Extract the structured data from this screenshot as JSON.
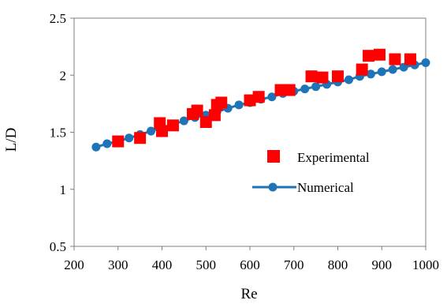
{
  "chart_data": {
    "type": "scatter",
    "xlabel": "Re",
    "ylabel": "L/D",
    "xlim": [
      200,
      1000
    ],
    "ylim": [
      0.5,
      2.5
    ],
    "xticks": [
      200,
      300,
      400,
      500,
      600,
      700,
      800,
      900,
      1000
    ],
    "yticks": [
      0.5,
      1,
      1.5,
      2,
      2.5
    ],
    "x_tick_labels": [
      "200",
      "300",
      "400",
      "500",
      "600",
      "700",
      "800",
      "900",
      "1000"
    ],
    "y_tick_labels": [
      "0.5",
      "1",
      "1.5",
      "2",
      "2.5"
    ],
    "grid": false,
    "legend_position": "right",
    "series": [
      {
        "name": "Experimental",
        "marker": "square",
        "line": false,
        "color": "#ff0000",
        "x": [
          300,
          350,
          395,
          400,
          425,
          470,
          480,
          500,
          520,
          525,
          535,
          600,
          620,
          670,
          690,
          740,
          765,
          800,
          855,
          870,
          895,
          930,
          965
        ],
        "y": [
          1.42,
          1.45,
          1.58,
          1.51,
          1.56,
          1.66,
          1.69,
          1.59,
          1.65,
          1.74,
          1.76,
          1.78,
          1.81,
          1.87,
          1.87,
          1.99,
          1.98,
          1.99,
          2.05,
          2.17,
          2.18,
          2.14,
          2.14
        ]
      },
      {
        "name": "Numerical",
        "marker": "circle",
        "line": true,
        "color": "#1f73b7",
        "x": [
          250,
          275,
          300,
          325,
          350,
          375,
          400,
          425,
          450,
          475,
          500,
          525,
          550,
          575,
          600,
          625,
          650,
          675,
          700,
          725,
          750,
          775,
          800,
          825,
          850,
          875,
          900,
          925,
          950,
          975,
          1000
        ],
        "y": [
          1.37,
          1.4,
          1.42,
          1.45,
          1.48,
          1.51,
          1.54,
          1.57,
          1.6,
          1.63,
          1.65,
          1.68,
          1.71,
          1.74,
          1.76,
          1.79,
          1.81,
          1.84,
          1.86,
          1.88,
          1.9,
          1.92,
          1.94,
          1.96,
          1.99,
          2.01,
          2.03,
          2.05,
          2.07,
          2.09,
          2.11
        ]
      }
    ]
  }
}
